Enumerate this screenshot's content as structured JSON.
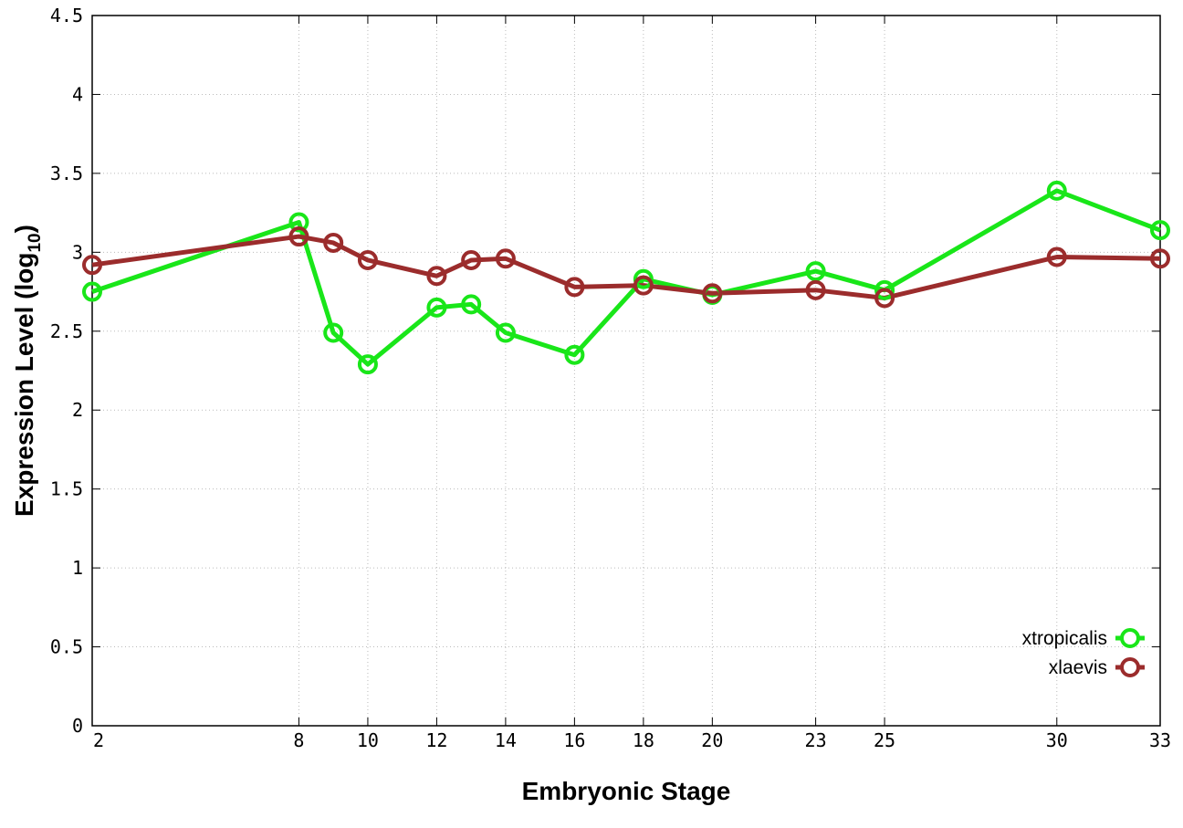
{
  "chart_data": {
    "type": "line",
    "xlabel": "Embryonic Stage",
    "ylabel": "Expression Level (log",
    "ylabel_subscript": "10",
    "ylabel_suffix": ")",
    "x_ticks": [
      2,
      8,
      10,
      12,
      14,
      16,
      18,
      20,
      23,
      25,
      30,
      33
    ],
    "y_ticks": [
      "0",
      "0.5",
      "1",
      "1.5",
      "2",
      "2.5",
      "3",
      "3.5",
      "4",
      "4.5"
    ],
    "ylim": [
      0,
      4.5
    ],
    "grid": true,
    "legend_position": "bottom-right",
    "x": [
      2,
      8,
      9,
      10,
      12,
      13,
      14,
      16,
      18,
      20,
      23,
      25,
      30,
      33
    ],
    "series": [
      {
        "name": "xtropicalis",
        "color": "#19e619",
        "values": [
          2.75,
          3.19,
          2.49,
          2.29,
          2.65,
          2.67,
          2.49,
          2.35,
          2.83,
          2.73,
          2.88,
          2.76,
          3.39,
          3.14
        ]
      },
      {
        "name": "xlaevis",
        "color": "#9b2c2c",
        "values": [
          2.92,
          3.1,
          3.06,
          2.95,
          2.85,
          2.95,
          2.96,
          2.78,
          2.79,
          2.74,
          2.76,
          2.71,
          2.97,
          2.96
        ]
      }
    ]
  }
}
